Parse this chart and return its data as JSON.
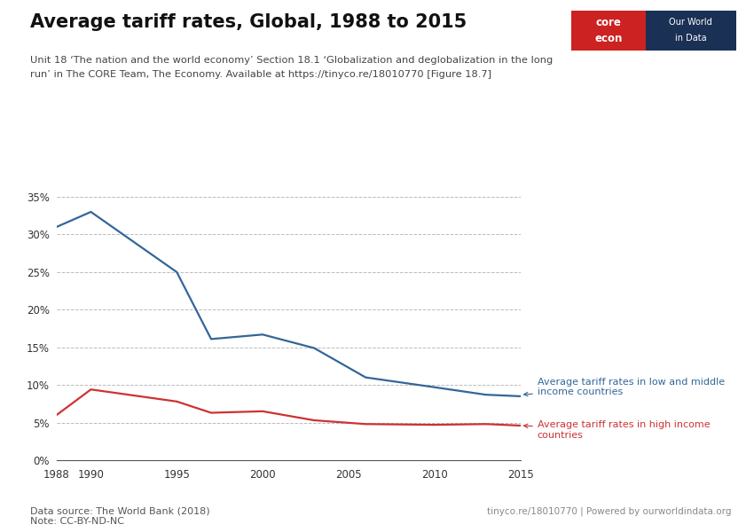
{
  "title": "Average tariff rates, Global, 1988 to 2015",
  "subtitle_line1": "Unit 18 ‘The nation and the world economy’ Section 18.1 ‘Globalization and deglobalization in the long",
  "subtitle_line2": "run’ in The CORE Team, The Economy. Available at https://tinyco.re/18010770 [Figure 18.7]",
  "datasource": "Data source: The World Bank (2018)",
  "note": "Note: CC-BY-ND-NC",
  "footer_right": "tinyco.re/18010770 | Powered by ourworldindata.org",
  "blue_years": [
    1988,
    1990,
    1995,
    1997,
    2000,
    2003,
    2006,
    2010,
    2013,
    2015
  ],
  "blue_values": [
    0.31,
    0.33,
    0.25,
    0.161,
    0.167,
    0.149,
    0.11,
    0.097,
    0.087,
    0.085
  ],
  "red_years": [
    1988,
    1990,
    1995,
    1997,
    2000,
    2003,
    2006,
    2010,
    2013,
    2015
  ],
  "red_values": [
    0.06,
    0.094,
    0.078,
    0.063,
    0.065,
    0.053,
    0.048,
    0.047,
    0.048,
    0.046
  ],
  "blue_color": "#336699",
  "red_color": "#cc3333",
  "blue_label": "Average tariff rates in low and middle\nincome countries",
  "red_label": "Average tariff rates in high income\ncountries",
  "xlim": [
    1988,
    2015
  ],
  "ylim": [
    0,
    0.35
  ],
  "yticks": [
    0,
    0.05,
    0.1,
    0.15,
    0.2,
    0.25,
    0.3,
    0.35
  ],
  "xticks": [
    1988,
    1990,
    1995,
    2000,
    2005,
    2010,
    2015
  ],
  "background_color": "#ffffff",
  "core_econ_red": "#cc2222",
  "core_econ_navy": "#1a3055"
}
